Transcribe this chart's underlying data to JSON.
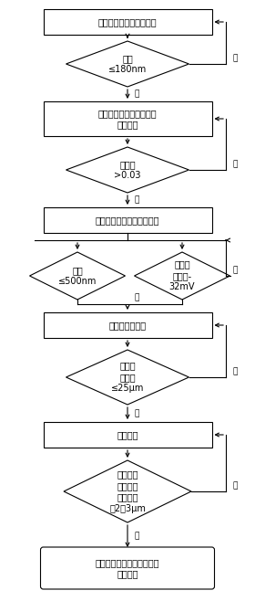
{
  "bg_color": "#ffffff",
  "lw": 0.8,
  "fontsize": 7.0,
  "fontsize_yn": 6.5,
  "yes_label": "是",
  "no_label": "否",
  "box1_label": "湿基人参淀粉粒子的制备",
  "dia1_label": "粒径\n≤180nm",
  "box2_label": "湿基界面活性人参淀粉粒\n子的制备",
  "dia2_label": "取代度\n>0.03",
  "box3_label": "杰纳斯人参淀粉粒子的制备",
  "dia3a_label": "粒径\n≤500nm",
  "dia3b_label": "负电荷\n不少于-\n32mV",
  "box4_label": "懒液溶胶的制备",
  "dia4_label": "油脂粒\n子直径\n≤25μm",
  "box5_label": "强化分散",
  "dia5_label": "体积、表\n面积平均\n直径不超\n过2、3μm",
  "box6_label": "杰纳斯人参淀粉粒子稳定的\n懒液溶胶"
}
